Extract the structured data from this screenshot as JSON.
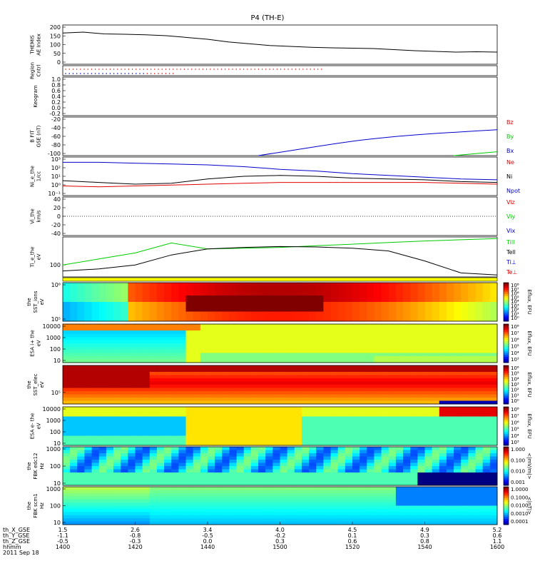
{
  "title": "P4 (TH-E)",
  "date_label": "2011 Sep 18",
  "bottom_axis": {
    "row_labels": [
      "th_X_GSE",
      "th_Y_GSE",
      "th_Z_GSE",
      "hhmm"
    ],
    "columns": [
      {
        "x": "1400",
        "values": [
          "1.5",
          "-1.1",
          "-0.5",
          "1400"
        ]
      },
      {
        "x": "1420",
        "values": [
          "2.6",
          "-0.8",
          "-0.3",
          "1420"
        ]
      },
      {
        "x": "1440",
        "values": [
          "3.4",
          "-0.5",
          "0.0",
          "1440"
        ]
      },
      {
        "x": "1500",
        "values": [
          "4.0",
          "-0.2",
          "0.3",
          "1500"
        ]
      },
      {
        "x": "1520",
        "values": [
          "4.5",
          "0.1",
          "0.6",
          "1520"
        ]
      },
      {
        "x": "1540",
        "values": [
          "4.9",
          "0.3",
          "0.8",
          "1540"
        ]
      },
      {
        "x": "1600",
        "values": [
          "5.2",
          "0.6",
          "1.1",
          "1600"
        ]
      }
    ]
  },
  "colors": {
    "black": "#000000",
    "red": "#e00000",
    "green": "#00cc00",
    "blue": "#0000cc"
  },
  "chart_data": [
    {
      "type": "line",
      "ylabel_lines": [
        "THEMIS",
        "AE Index"
      ],
      "yticks": [
        "200",
        "150",
        "100",
        "50",
        "0"
      ],
      "ylim": [
        -10,
        210
      ],
      "series": [
        {
          "color": "#000000",
          "values": [
            165,
            170,
            160,
            158,
            155,
            150,
            140,
            130,
            115,
            105,
            95,
            90,
            85,
            82,
            80,
            78,
            72,
            66,
            62,
            58,
            60,
            58
          ]
        }
      ]
    },
    {
      "type": "line",
      "ylabel_lines": [
        "Region",
        "Cntrl"
      ],
      "yticks": [],
      "ylim": [
        0,
        1
      ],
      "series": []
    },
    {
      "type": "line",
      "ylabel_lines": [
        "Keogram"
      ],
      "yticks": [
        "1.0",
        "0.8",
        "0.6",
        "0.4",
        "0.2",
        "0.0",
        "-0.2"
      ],
      "ylim": [
        -0.2,
        1.0
      ],
      "series": []
    },
    {
      "type": "line",
      "ylabel_lines": [
        "B FIT",
        "GSE (nT)"
      ],
      "yticks": [
        "-20",
        "-40",
        "-60",
        "-80",
        "-100"
      ],
      "ylim": [
        -100,
        0
      ],
      "legend": [
        {
          "label": "Bz",
          "color": "#e00000"
        },
        {
          "label": "By",
          "color": "#00cc00"
        },
        {
          "label": "Bx",
          "color": "#0000cc"
        }
      ],
      "series": [
        {
          "color": "#0000cc",
          "x0": 0.45,
          "values": [
            -100,
            -92,
            -84,
            -76,
            -68,
            -61,
            -55,
            -50,
            -46,
            -42,
            -39,
            -36,
            -33
          ]
        },
        {
          "color": "#00cc00",
          "x0": 0.9,
          "values": [
            -100,
            -95,
            -90
          ]
        }
      ]
    },
    {
      "type": "line",
      "ylabel_lines": [
        "Ni_e_the",
        "1/cc"
      ],
      "yticks": [
        "10³",
        "10²",
        "10¹",
        "10⁰",
        "10⁻¹"
      ],
      "ylim": [
        -1,
        3.4
      ],
      "log": true,
      "legend": [
        {
          "label": "Ne",
          "color": "#e00000"
        },
        {
          "label": "Ni",
          "color": "#000000"
        },
        {
          "label": "Npot",
          "color": "#0000cc"
        }
      ],
      "series": [
        {
          "color": "#0000cc",
          "values": [
            2.8,
            2.8,
            2.7,
            2.6,
            2.5,
            2.3,
            2.0,
            1.8,
            1.5,
            1.3,
            1.1,
            0.9,
            0.8
          ]
        },
        {
          "color": "#000000",
          "values": [
            0.7,
            0.5,
            0.3,
            0.4,
            0.9,
            1.2,
            1.3,
            1.2,
            1.0,
            0.9,
            0.8,
            0.6,
            0.5
          ]
        },
        {
          "color": "#e00000",
          "values": [
            0.1,
            0.0,
            0.1,
            0.2,
            0.3,
            0.4,
            0.5,
            0.5,
            0.5,
            0.5,
            0.5,
            0.4,
            0.3
          ]
        }
      ]
    },
    {
      "type": "line",
      "ylabel_lines": [
        "Vi_the",
        "km/s"
      ],
      "yticks": [
        "40",
        "20",
        "0",
        "-20",
        "-40"
      ],
      "ylim": [
        -50,
        50
      ],
      "legend": [
        {
          "label": "Viz",
          "color": "#e00000"
        },
        {
          "label": "Viy",
          "color": "#00cc00"
        },
        {
          "label": "Vix",
          "color": "#0000cc"
        }
      ],
      "series": []
    },
    {
      "type": "line",
      "ylabel_lines": [
        "Ti_e_the",
        "eV"
      ],
      "yticks": [
        "100"
      ],
      "ylim": [
        0,
        1
      ],
      "legend": [
        {
          "label": "Till",
          "color": "#00cc00"
        },
        {
          "label": "Tell",
          "color": "#000000"
        },
        {
          "label": "Ti⊥",
          "color": "#0000cc"
        },
        {
          "label": "Te⊥",
          "color": "#e00000"
        }
      ],
      "series": [
        {
          "color": "#00cc00",
          "values": [
            0.3,
            0.45,
            0.6,
            0.85,
            0.7,
            0.72,
            0.74,
            0.78,
            0.82,
            0.86,
            0.9,
            0.93,
            0.96
          ]
        },
        {
          "color": "#000000",
          "values": [
            0.15,
            0.2,
            0.3,
            0.55,
            0.7,
            0.74,
            0.76,
            0.75,
            0.72,
            0.65,
            0.4,
            0.1,
            0.05
          ]
        }
      ]
    },
    {
      "type": "heatmap",
      "ylabel_lines": [
        "the",
        "SST_ions",
        "eV"
      ],
      "yticks": [
        "10⁶",
        "10⁵"
      ],
      "cbar_ticks": [
        "10⁸",
        "10⁷",
        "10⁶",
        "10⁵",
        "10⁴",
        "10³",
        "10²",
        "10¹",
        "10⁰"
      ],
      "cbar_label": "Eflux, EFU",
      "pattern": "sst_i"
    },
    {
      "type": "heatmap",
      "ylabel_lines": [
        "ESA i+ the",
        "eV"
      ],
      "yticks": [
        "10000",
        "1000",
        "100",
        "10"
      ],
      "cbar_ticks": [
        "10⁸",
        "10⁷",
        "10⁶",
        "10⁵",
        "10⁴",
        "10³"
      ],
      "cbar_label": "Eflux, EFU",
      "pattern": "esa_i"
    },
    {
      "type": "heatmap",
      "ylabel_lines": [
        "the",
        "SST_elec",
        "eV"
      ],
      "yticks": [
        "10⁵"
      ],
      "cbar_ticks": [
        "10⁶",
        "10⁵",
        "10⁴",
        "10³",
        "10²",
        "10¹",
        "10⁰"
      ],
      "cbar_label": "Eflux, EFU",
      "pattern": "sst_e"
    },
    {
      "type": "heatmap",
      "ylabel_lines": [
        "ESA e- the",
        "eV"
      ],
      "yticks": [
        "10000",
        "1000",
        "100",
        "10"
      ],
      "cbar_ticks": [
        "10⁸",
        "10⁷",
        "10⁶",
        "10⁵",
        "10⁴",
        "10³"
      ],
      "cbar_label": "Eflux, EFU",
      "pattern": "esa_e"
    },
    {
      "type": "heatmap",
      "ylabel_lines": [
        "the",
        "FBK edc12",
        "Hz"
      ],
      "yticks": [
        "1000",
        "100",
        "10"
      ],
      "cbar_ticks": [
        "1.000",
        "0.100",
        "0.010",
        "0.001"
      ],
      "cbar_label": "<|mV/m|>",
      "pattern": "fbk_e"
    },
    {
      "type": "heatmap",
      "ylabel_lines": [
        "the",
        "FBK scm1",
        "Hz"
      ],
      "yticks": [
        "1000",
        "100",
        "10"
      ],
      "cbar_ticks": [
        "1.0000",
        "0.1000",
        "0.0100",
        "0.0010",
        "0.0001"
      ],
      "cbar_label": "<|nT|>",
      "pattern": "fbk_s"
    }
  ]
}
